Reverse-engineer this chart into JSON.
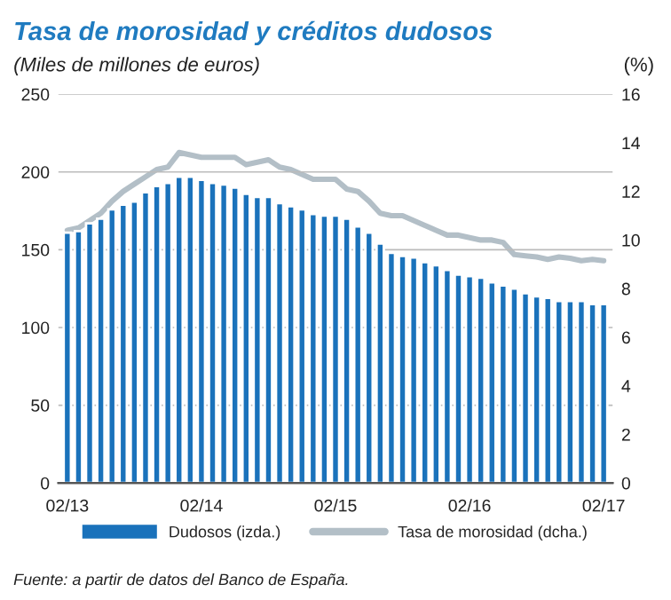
{
  "chart_data": {
    "type": "bar",
    "title": "Tasa de morosidad y créditos dudosos",
    "ylabel": "(Miles de millones de euros)",
    "y2label": "(%)",
    "categories": [
      "02/13",
      null,
      null,
      null,
      null,
      null,
      null,
      null,
      null,
      null,
      null,
      null,
      "02/14",
      null,
      null,
      null,
      null,
      null,
      null,
      null,
      null,
      null,
      null,
      null,
      "02/15",
      null,
      null,
      null,
      null,
      null,
      null,
      null,
      null,
      null,
      null,
      null,
      "02/16",
      null,
      null,
      null,
      null,
      null,
      null,
      null,
      null,
      null,
      null,
      null,
      "02/17"
    ],
    "series": [
      {
        "name": "Dudosos (izda.)",
        "color": "#1a72bb",
        "values": [
          161,
          162,
          167,
          170,
          176,
          179,
          181,
          187,
          191,
          193,
          197,
          197,
          195,
          193,
          192,
          190,
          186,
          184,
          184,
          180,
          178,
          176,
          173,
          172,
          172,
          170,
          165,
          161,
          154,
          148,
          146,
          145,
          142,
          140,
          137,
          134,
          133,
          132,
          129,
          127,
          125,
          122,
          120,
          119,
          117,
          117,
          117,
          115,
          115
        ]
      },
      {
        "name": "Tasa de morosidad (dcha.)",
        "type": "line",
        "axis": "y2",
        "color": "#b3bfc7",
        "values": [
          10.4,
          10.5,
          10.8,
          11.1,
          11.6,
          12.0,
          12.3,
          12.6,
          12.9,
          13.0,
          13.6,
          13.5,
          13.4,
          13.4,
          13.4,
          13.4,
          13.1,
          13.2,
          13.3,
          13.0,
          12.9,
          12.7,
          12.5,
          12.5,
          12.5,
          12.1,
          12.0,
          11.6,
          11.1,
          11.0,
          11.0,
          10.8,
          10.6,
          10.4,
          10.2,
          10.2,
          10.1,
          10.0,
          10.0,
          9.9,
          9.4,
          9.35,
          9.3,
          9.2,
          9.3,
          9.25,
          9.15,
          9.2,
          9.15
        ]
      }
    ],
    "ylim": [
      0,
      250
    ],
    "yticks": [
      0,
      50,
      100,
      150,
      200,
      250
    ],
    "y2lim": [
      0,
      16
    ],
    "y2ticks": [
      0,
      2,
      4,
      6,
      8,
      10,
      12,
      14,
      16
    ],
    "grid": "y",
    "legend": "bottom",
    "annotations": [
      "Fuente: a partir de datos del Banco de España."
    ]
  }
}
